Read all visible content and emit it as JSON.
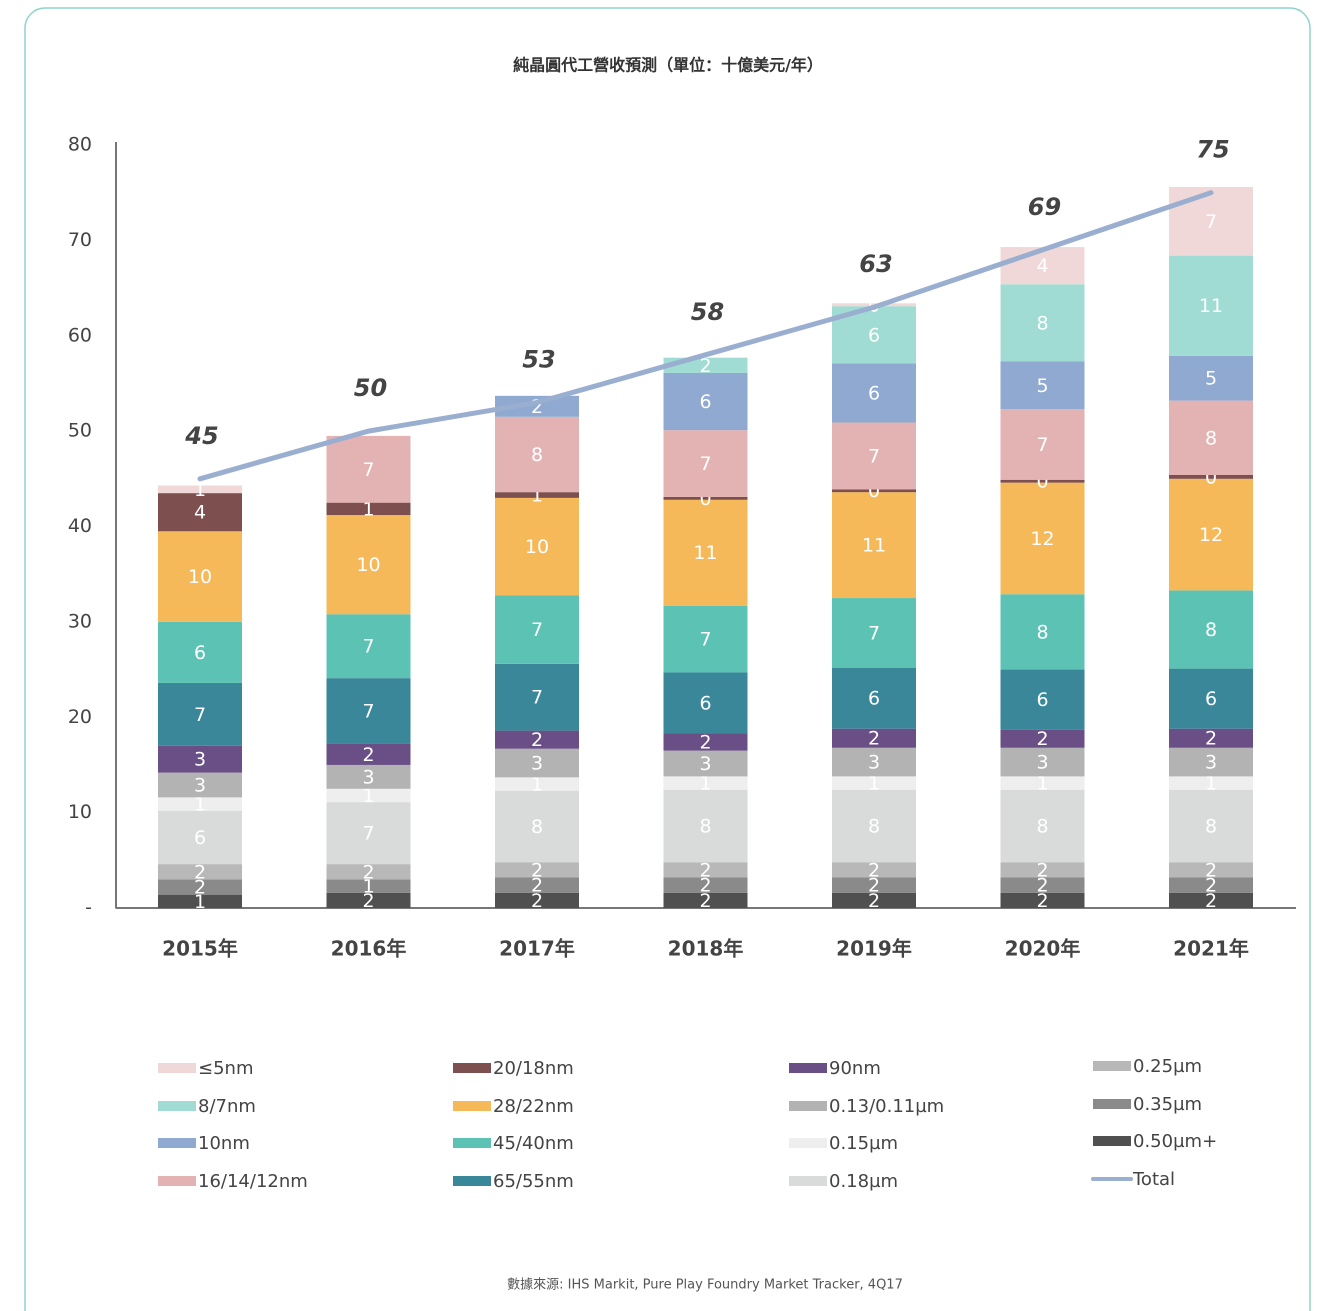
{
  "chart_data": {
    "type": "bar",
    "stacked": true,
    "title": "純晶圓代工營收預測（單位：十億美元/年）",
    "source": "數據來源: IHS Markit, Pure Play Foundry Market Tracker, 4Q17",
    "categories": [
      "2015年",
      "2016年",
      "2017年",
      "2018年",
      "2019年",
      "2020年",
      "2021年"
    ],
    "ylim": [
      0,
      80
    ],
    "yticks": [
      {
        "value": 0,
        "label": "-"
      },
      10,
      20,
      30,
      40,
      50,
      60,
      70,
      80
    ],
    "grid": false,
    "legend": "bottom",
    "series": [
      {
        "name": "≤5nm",
        "color": "#f0d8d8",
        "values": [
          0.8,
          null,
          null,
          null,
          0.3,
          3.9,
          7.2
        ],
        "value_labels": [
          "1",
          null,
          null,
          null,
          "0",
          "4",
          "7"
        ]
      },
      {
        "name": "8/7nm",
        "color": "#a0dcd4",
        "values": [
          null,
          null,
          null,
          1.6,
          6.0,
          8.1,
          10.5
        ],
        "value_labels": [
          null,
          null,
          null,
          "2",
          "6",
          "8",
          "11"
        ]
      },
      {
        "name": "10nm",
        "color": "#8fa9d0",
        "values": [
          null,
          null,
          2.2,
          6.0,
          6.2,
          5.0,
          4.7
        ],
        "value_labels": [
          null,
          null,
          "2",
          "6",
          "6",
          "5",
          "5"
        ]
      },
      {
        "name": "16/14/12nm",
        "color": "#e3b3b3",
        "values": [
          null,
          7.0,
          7.9,
          7.0,
          7.0,
          7.4,
          7.8
        ],
        "value_labels": [
          null,
          "7",
          "8",
          "7",
          "7",
          "7",
          "8"
        ]
      },
      {
        "name": "20/18nm",
        "color": "#7d4f4f",
        "values": [
          4.0,
          1.3,
          0.6,
          0.3,
          0.3,
          0.3,
          0.4
        ],
        "value_labels": [
          "4",
          "1",
          "1",
          "0",
          "0",
          "0",
          "0"
        ]
      },
      {
        "name": "28/22nm",
        "color": "#f5b95a",
        "values": [
          9.5,
          10.4,
          10.2,
          11.1,
          11.1,
          11.7,
          11.7
        ],
        "value_labels": [
          "10",
          "10",
          "10",
          "11",
          "11",
          "12",
          "12"
        ]
      },
      {
        "name": "45/40nm",
        "color": "#5cc3b4",
        "values": [
          6.4,
          6.7,
          7.2,
          7.0,
          7.3,
          7.9,
          8.2
        ],
        "value_labels": [
          "6",
          "7",
          "7",
          "7",
          "7",
          "8",
          "8"
        ]
      },
      {
        "name": "65/55nm",
        "color": "#3a8799",
        "values": [
          6.6,
          6.9,
          7.0,
          6.4,
          6.4,
          6.3,
          6.3
        ],
        "value_labels": [
          "7",
          "7",
          "7",
          "6",
          "6",
          "6",
          "6"
        ]
      },
      {
        "name": "90nm",
        "color": "#6a4f86",
        "values": [
          2.8,
          2.2,
          1.9,
          1.8,
          2.0,
          1.9,
          2.0
        ],
        "value_labels": [
          "3",
          "2",
          "2",
          "2",
          "2",
          "2",
          "2"
        ]
      },
      {
        "name": "0.13/0.11µm",
        "color": "#b3b3b3",
        "values": [
          2.6,
          2.5,
          3.0,
          2.7,
          3.0,
          3.0,
          3.0
        ],
        "value_labels": [
          "3",
          "3",
          "3",
          "3",
          "3",
          "3",
          "3"
        ]
      },
      {
        "name": "0.15µm",
        "color": "#eeeeee",
        "values": [
          1.4,
          1.4,
          1.4,
          1.4,
          1.4,
          1.4,
          1.4
        ],
        "value_labels": [
          "1",
          "1",
          "1",
          "1",
          "1",
          "1",
          "1"
        ]
      },
      {
        "name": "0.18µm",
        "color": "#d9dada",
        "values": [
          5.6,
          6.5,
          7.5,
          7.6,
          7.6,
          7.6,
          7.6
        ],
        "value_labels": [
          "6",
          "7",
          "8",
          "8",
          "8",
          "8",
          "8"
        ]
      },
      {
        "name": "0.25µm",
        "color": "#b8b8b8",
        "values": [
          1.6,
          1.6,
          1.6,
          1.6,
          1.6,
          1.6,
          1.6
        ],
        "value_labels": [
          "2",
          "2",
          "2",
          "2",
          "2",
          "2",
          "2"
        ]
      },
      {
        "name": "0.35µm",
        "color": "#8a8a8a",
        "values": [
          1.6,
          1.4,
          1.6,
          1.6,
          1.6,
          1.6,
          1.6
        ],
        "value_labels": [
          "2",
          "1",
          "2",
          "2",
          "2",
          "2",
          "2"
        ]
      },
      {
        "name": "0.50µm+",
        "color": "#505050",
        "values": [
          1.4,
          1.6,
          1.6,
          1.6,
          1.6,
          1.6,
          1.6
        ],
        "value_labels": [
          "1",
          "2",
          "2",
          "2",
          "2",
          "2",
          "2"
        ]
      },
      {
        "name": "Total",
        "type": "line",
        "color": "#9aaed0",
        "values": [
          45,
          50,
          53,
          58,
          63,
          69,
          75
        ]
      }
    ]
  }
}
